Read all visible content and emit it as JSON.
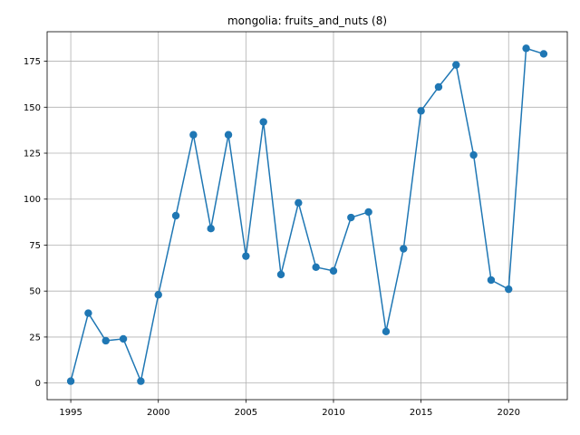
{
  "chart_data": {
    "type": "line",
    "title": "mongolia: fruits_and_nuts (8)",
    "xlabel": "",
    "ylabel": "",
    "xlim": [
      1993.65,
      2023.35
    ],
    "ylim": [
      -9.05,
      191.05
    ],
    "grid": true,
    "x_ticks": [
      1995,
      2000,
      2005,
      2010,
      2015,
      2020
    ],
    "y_ticks": [
      0,
      25,
      50,
      75,
      100,
      125,
      150,
      175
    ],
    "series": [
      {
        "color": "#1f77b4",
        "marker": "circle",
        "x": [
          1995,
          1996,
          1997,
          1998,
          1999,
          2000,
          2001,
          2002,
          2003,
          2004,
          2005,
          2006,
          2007,
          2008,
          2009,
          2010,
          2011,
          2012,
          2013,
          2014,
          2015,
          2016,
          2017,
          2018,
          2019,
          2020,
          2021,
          2022
        ],
        "y": [
          1,
          38,
          23,
          24,
          1,
          48,
          91,
          135,
          84,
          135,
          69,
          142,
          59,
          98,
          63,
          61,
          90,
          93,
          28,
          73,
          148,
          161,
          173,
          124,
          56,
          51,
          182,
          179
        ]
      }
    ]
  }
}
